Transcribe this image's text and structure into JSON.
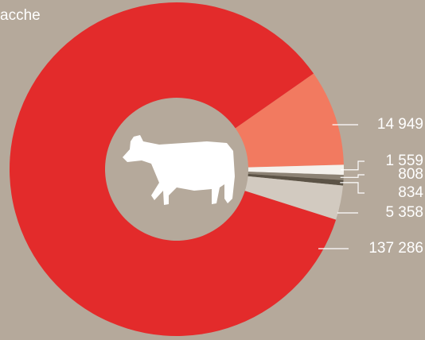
{
  "chart_data": {
    "type": "donut",
    "title": "acche",
    "categories": [
      null,
      null,
      null,
      null,
      null,
      null
    ],
    "values": [
      14949,
      1559,
      808,
      834,
      5358,
      137286
    ],
    "value_labels": [
      "14 949",
      "1 559",
      "808",
      "834",
      "5 358",
      "137 286"
    ],
    "colors": [
      "#f27a60",
      "#f4f1ec",
      "#8c8274",
      "#5c5346",
      "#d2cac0",
      "#e32b2b"
    ]
  }
}
